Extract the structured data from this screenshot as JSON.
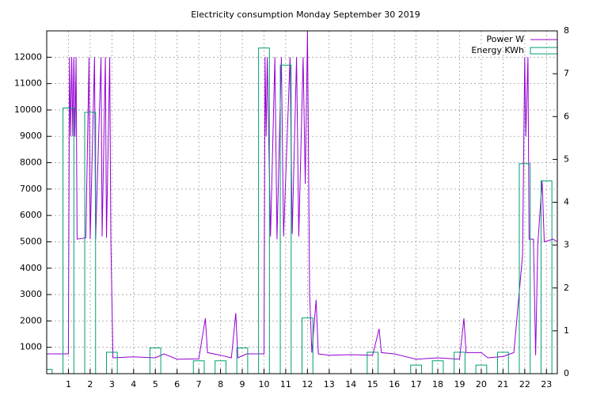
{
  "chart_data": {
    "type": "line-bar",
    "title": "Electricity consumption Monday September 30 2019",
    "xlim": [
      0,
      23.5
    ],
    "xticks": [
      1,
      2,
      3,
      4,
      5,
      6,
      7,
      8,
      9,
      10,
      11,
      12,
      13,
      14,
      15,
      16,
      17,
      18,
      19,
      20,
      21,
      22,
      23
    ],
    "ylim": [
      0,
      13000
    ],
    "yticks": [
      1000,
      2000,
      3000,
      4000,
      5000,
      6000,
      7000,
      8000,
      9000,
      10000,
      11000,
      12000
    ],
    "y2lim": [
      0,
      8
    ],
    "y2ticks": [
      0,
      1,
      2,
      3,
      4,
      5,
      6,
      7,
      8
    ],
    "grid": true,
    "legend": "top-right",
    "series": [
      {
        "name": "Power W",
        "color": "#9400d3",
        "x": [
          0,
          0.5,
          1.0,
          1.05,
          1.1,
          1.15,
          1.2,
          1.25,
          1.3,
          1.35,
          1.4,
          1.8,
          1.95,
          2.0,
          2.2,
          2.25,
          2.5,
          2.55,
          2.7,
          2.75,
          2.9,
          2.95,
          3.05,
          4,
          5,
          5.4,
          6,
          7,
          7.3,
          7.4,
          8,
          8.5,
          8.7,
          8.8,
          9.2,
          10,
          10.05,
          10.1,
          10.15,
          10.3,
          10.5,
          10.6,
          10.8,
          10.9,
          11.2,
          11.3,
          11.5,
          11.6,
          11.8,
          11.9,
          12.0,
          12.1,
          12.2,
          12.4,
          12.5,
          13,
          14,
          15,
          15.3,
          15.4,
          16,
          17,
          18,
          19,
          19.2,
          19.3,
          20,
          20.3,
          21,
          21.5,
          21.9,
          22,
          22.05,
          22.15,
          22.2,
          22.4,
          22.5,
          22.6,
          22.8,
          22.9,
          23.3,
          23.5
        ],
        "values": [
          750,
          750,
          750,
          12000,
          9000,
          12000,
          9000,
          12000,
          9000,
          12000,
          5100,
          5150,
          12000,
          5100,
          12000,
          5100,
          12000,
          5200,
          12000,
          5150,
          12000,
          5100,
          600,
          640,
          600,
          750,
          550,
          560,
          2100,
          800,
          700,
          600,
          2300,
          600,
          750,
          750,
          12000,
          9000,
          12000,
          5200,
          12000,
          5100,
          12000,
          5200,
          12000,
          5300,
          12000,
          5200,
          12000,
          7200,
          13000,
          3000,
          800,
          2800,
          750,
          700,
          720,
          700,
          1700,
          800,
          750,
          550,
          600,
          550,
          2100,
          800,
          800,
          600,
          650,
          800,
          4500,
          12000,
          9000,
          12000,
          5100,
          5100,
          700,
          4900,
          7300,
          5000,
          5100,
          5000
        ]
      },
      {
        "name": "Energy KWh",
        "color": "#009e73",
        "axis": "y2",
        "x": [
          0,
          1,
          2,
          3,
          4,
          5,
          6,
          7,
          8,
          9,
          10,
          11,
          12,
          13,
          14,
          15,
          16,
          17,
          18,
          19,
          20,
          21,
          22,
          23
        ],
        "values": [
          0.1,
          6.2,
          6.1,
          0.5,
          0,
          0.6,
          0,
          0.3,
          0.3,
          0.6,
          7.6,
          7.2,
          1.3,
          0,
          0,
          0.5,
          0,
          0.2,
          0.3,
          0.5,
          0.2,
          0.5,
          4.9,
          4.5
        ]
      }
    ]
  }
}
